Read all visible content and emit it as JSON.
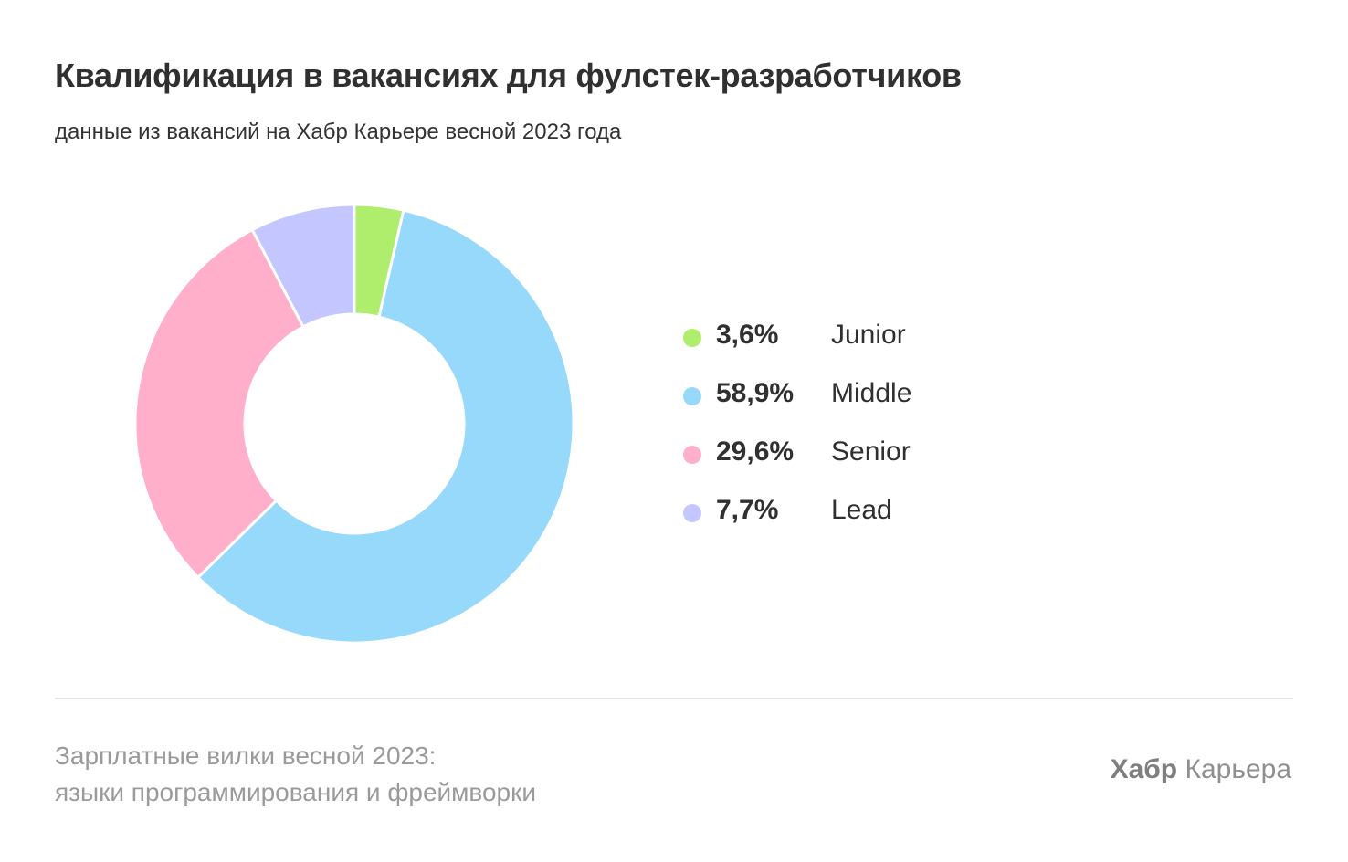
{
  "chart_data": {
    "type": "pie",
    "variant": "donut",
    "title": "Квалификация в вакансиях для фулстек-разработчиков",
    "subtitle": "данные из вакансий на Хабр Карьере весной 2023 года",
    "categories": [
      "Junior",
      "Middle",
      "Senior",
      "Lead"
    ],
    "values": [
      3.6,
      58.9,
      29.6,
      7.7
    ],
    "labels": [
      "3,6%",
      "58,9%",
      "29,6%",
      "7,7%"
    ],
    "colors": [
      "#aeee6c",
      "#96d9fb",
      "#ffafca",
      "#c4c6ff"
    ],
    "legend_position": "right"
  },
  "footer": {
    "line1": "Зарплатные вилки весной 2023:",
    "line2": "языки программирования и фреймворки",
    "brand_bold": "Хабр",
    "brand_rest": "Карьера"
  }
}
